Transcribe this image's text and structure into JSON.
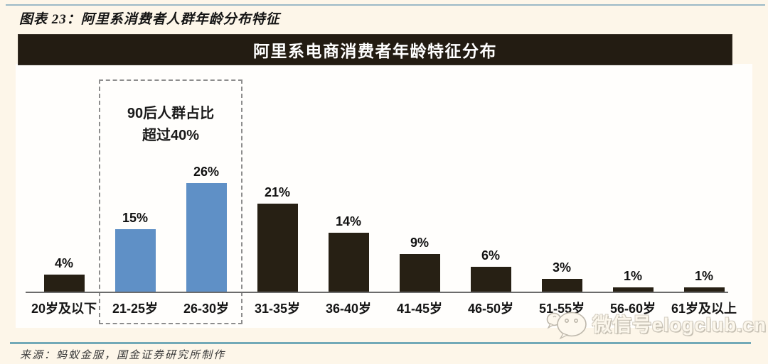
{
  "page": {
    "figure_label": "图表 23：阿里系消费者人群年龄分布特征",
    "source_note": "来源：蚂蚁金服，国金证券研究所制作",
    "watermark": {
      "icon": "wechat-bubbles-icon",
      "text": "微信号elogclub.cn"
    }
  },
  "chart": {
    "title": "阿里系电商消费者年龄特征分布",
    "annotation_line1": "90后人群占比",
    "annotation_line2": "超过40%"
  },
  "chart_data": {
    "type": "bar",
    "title": "阿里系电商消费者年龄特征分布",
    "categories": [
      "20岁及以下",
      "21-25岁",
      "26-30岁",
      "31-35岁",
      "36-40岁",
      "41-45岁",
      "46-50岁",
      "51-55岁",
      "56-60岁",
      "61岁及以上"
    ],
    "values": [
      4,
      15,
      26,
      21,
      14,
      9,
      6,
      3,
      1,
      1
    ],
    "value_labels": [
      "4%",
      "15%",
      "26%",
      "21%",
      "14%",
      "9%",
      "6%",
      "3%",
      "1%",
      "1%"
    ],
    "unit": "percent",
    "highlight_indices": [
      1,
      2
    ],
    "annotation": "90后人群占比超过40%",
    "xlabel": "",
    "ylabel": "",
    "ylim": [
      0,
      30
    ],
    "grid": false,
    "legend": null,
    "colors": {
      "default_bar": "#272014",
      "highlight_bar": "#5f90c6"
    }
  },
  "colors": {
    "background": "#fdf6e9",
    "panel": "#fffefc",
    "header_bg": "#231c12",
    "header_text": "#ffffff",
    "rule_top": "#9cb9c6",
    "rule_bottom": "#72a9b7",
    "axis": "#6b6b6b",
    "dashed_box": "#8d8d8d"
  }
}
